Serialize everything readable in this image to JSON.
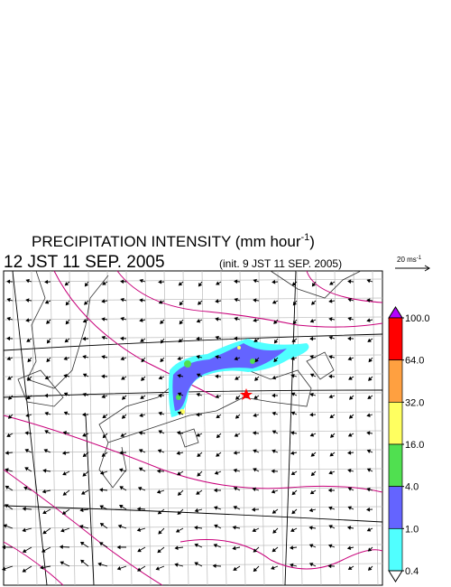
{
  "header": {
    "title": {
      "text": "PRECIPITATION INTENSITY (mm hour",
      "superscript": "-1",
      "closing": ")"
    },
    "valid_time": "12 JST 11 SEP. 2005",
    "init_time": "(init. 9 JST 11 SEP. 2005)"
  },
  "vector_scale": {
    "text": "20 ms",
    "superscript": "-1"
  },
  "legend": {
    "levels": [
      {
        "value": 100,
        "label": "100.0"
      },
      {
        "value": 64,
        "label": "64.0"
      },
      {
        "value": 32,
        "label": "32.0"
      },
      {
        "value": 16,
        "label": "16.0"
      },
      {
        "value": 4,
        "label": "4.0"
      },
      {
        "value": 1,
        "label": "1.0"
      },
      {
        "value": 0.4,
        "label": "0.4"
      }
    ],
    "colors": [
      "#ff0000",
      "#ffa040",
      "#ffff60",
      "#50e050",
      "#6464ff",
      "#50ffff"
    ],
    "over_color": "#b400ff",
    "under_color": "#ffffff"
  }
}
